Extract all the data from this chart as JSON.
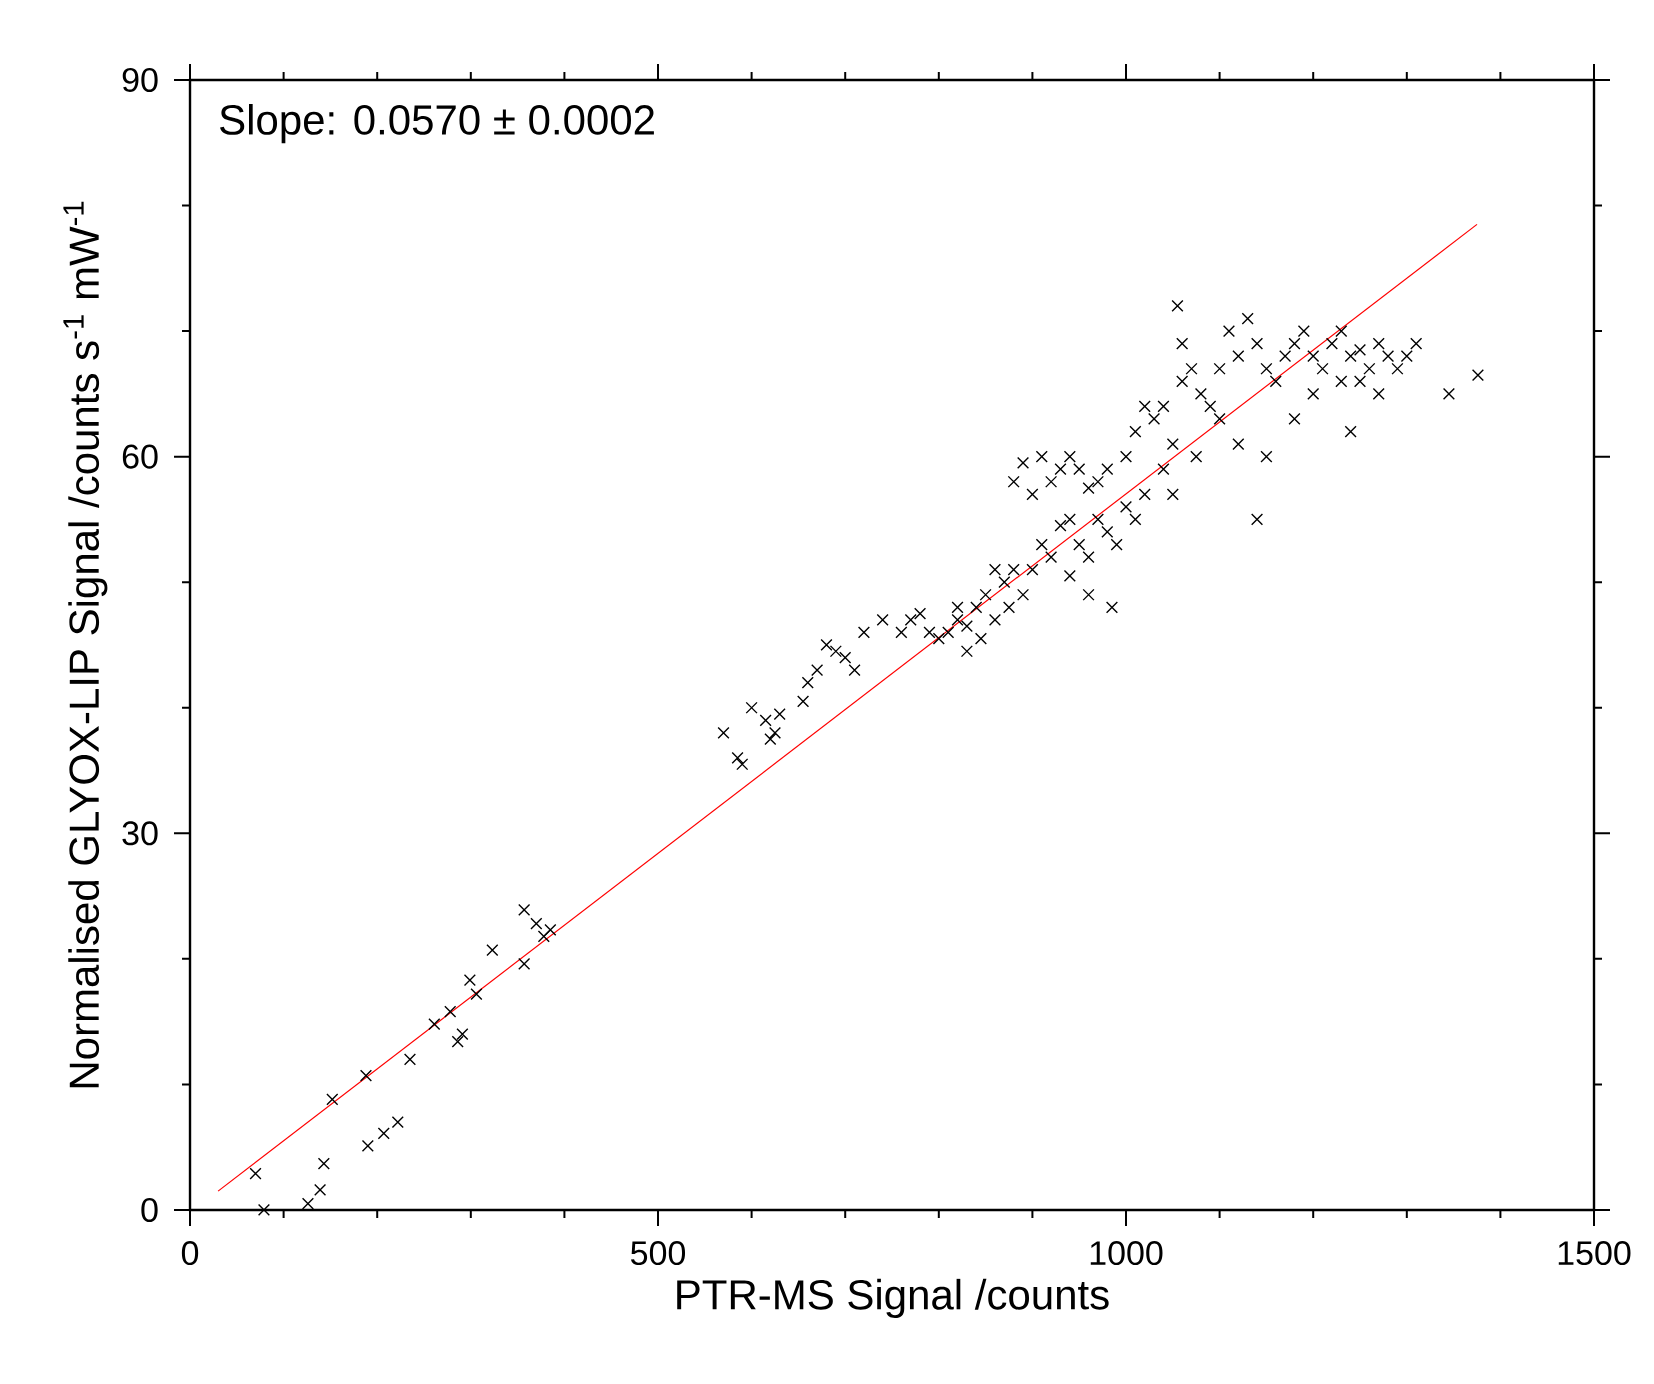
{
  "chart_data": {
    "type": "scatter",
    "xlabel": "PTR-MS Signal /counts",
    "ylabel": "Normalised GLYOX-LIP Signal /counts s$^{-1}$ mW$^{-1}$",
    "annotations": [
      "Slope: 0.0570 ± 0.0002"
    ],
    "xlim": [
      0,
      1500
    ],
    "ylim": [
      0,
      90
    ],
    "xticks": [
      0,
      500,
      1000,
      1500
    ],
    "yticks": [
      0,
      30,
      60,
      90
    ],
    "marker": "cross",
    "series": [
      {
        "color": "#000000",
        "x": [
          70,
          79,
          126,
          139,
          143,
          152,
          188,
          190,
          207,
          222,
          235,
          261,
          278,
          286,
          291,
          299,
          306,
          323,
          357,
          357,
          370,
          378,
          385,
          570,
          585,
          590,
          600,
          615,
          625,
          630,
          620,
          655,
          660,
          670,
          680,
          690,
          700,
          710,
          720,
          740,
          760,
          770,
          780,
          790,
          800,
          810,
          820,
          830,
          840,
          850,
          860,
          870,
          880,
          890,
          900,
          860,
          875,
          820,
          845,
          830,
          880,
          890,
          900,
          910,
          920,
          930,
          940,
          950,
          960,
          970,
          980,
          910,
          920,
          930,
          940,
          950,
          960,
          970,
          980,
          990,
          1000,
          1010,
          960,
          985,
          940,
          1000,
          1010,
          1020,
          1030,
          1040,
          1050,
          1060,
          1070,
          1080,
          1090,
          1100,
          1050,
          1075,
          1040,
          1020,
          1055,
          1060,
          1100,
          1110,
          1120,
          1130,
          1140,
          1150,
          1160,
          1170,
          1180,
          1190,
          1200,
          1210,
          1220,
          1230,
          1240,
          1250,
          1260,
          1270,
          1280,
          1290,
          1300,
          1310,
          1120,
          1140,
          1180,
          1200,
          1240,
          1345,
          1376,
          1230,
          1250,
          1270,
          1150
        ],
        "values": [
          2.9,
          0,
          0.5,
          1.6,
          3.7,
          8.8,
          10.7,
          5.1,
          6.1,
          7,
          12,
          14.8,
          15.8,
          13.4,
          14,
          18.3,
          17.2,
          20.7,
          23.9,
          19.6,
          22.8,
          21.8,
          22.3,
          38,
          36,
          35.5,
          40,
          39,
          38,
          39.5,
          37.5,
          40.5,
          42,
          43,
          45,
          44.5,
          44,
          43,
          46,
          47,
          46,
          47,
          47.5,
          46,
          45.5,
          46,
          47,
          46.5,
          48,
          49,
          47,
          50,
          51,
          49,
          51,
          51,
          48,
          48,
          45.5,
          44.5,
          58,
          59.5,
          57,
          60,
          58,
          59,
          60,
          59,
          57.5,
          58,
          59,
          53,
          52,
          54.5,
          55,
          53,
          52,
          55,
          54,
          53,
          56,
          55,
          49,
          48,
          50.5,
          60,
          62,
          64,
          63,
          59,
          61,
          66,
          67,
          65,
          64,
          63,
          57,
          60,
          64,
          57,
          72,
          69,
          67,
          70,
          68,
          71,
          69,
          67,
          66,
          68,
          69,
          70,
          68,
          67,
          69,
          70,
          68,
          66,
          67,
          69,
          68,
          67,
          68,
          69,
          61,
          55,
          63,
          65,
          62,
          65,
          66.5,
          66,
          68.5,
          65,
          60
        ]
      },
      {
        "type": "line",
        "color": "#ff0000",
        "line_style": "solid",
        "marker": "none",
        "x": [
          30,
          1375
        ],
        "values": [
          1.5,
          78.5
        ]
      }
    ]
  }
}
